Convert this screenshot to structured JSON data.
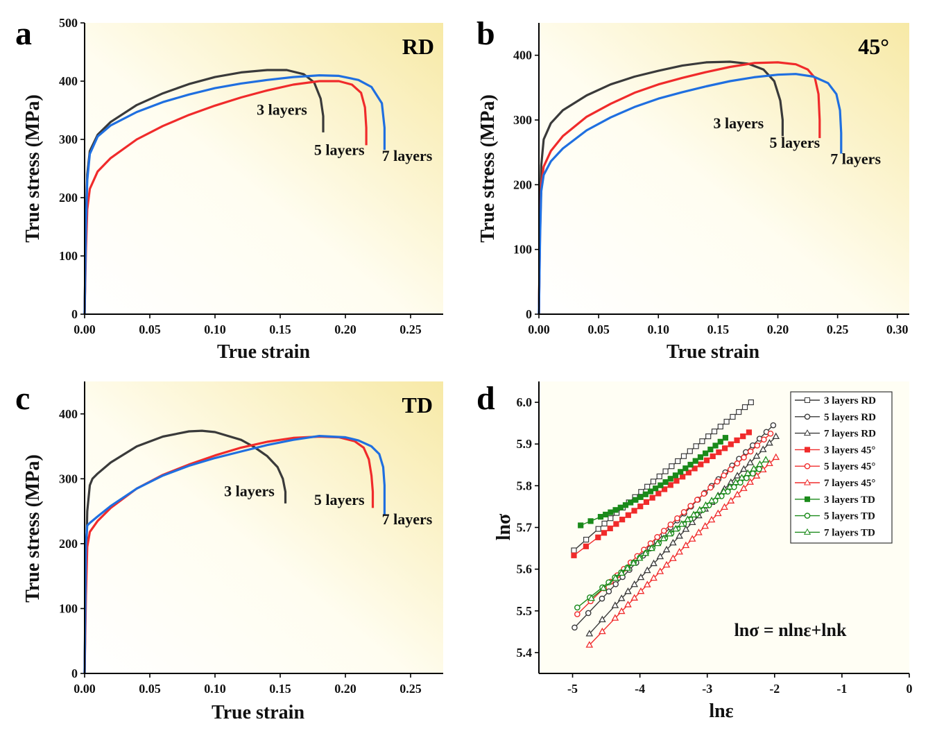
{
  "colors": {
    "black": "#3a3a3a",
    "red": "#f02b2b",
    "blue": "#1f6fe0",
    "green": "#1a8a1a",
    "bg_light": "#fffef6",
    "bg_dark": "#f8ebaa"
  },
  "chart_data": [
    {
      "id": "a",
      "type": "line",
      "panel_label": "a",
      "corner_label": "RD",
      "xlabel": "True strain",
      "ylabel": "True stress (MPa)",
      "xlim": [
        0,
        0.275
      ],
      "ylim": [
        0,
        500
      ],
      "xticks": [
        0.0,
        0.05,
        0.1,
        0.15,
        0.2,
        0.25
      ],
      "xtick_labels": [
        "0.00",
        "0.05",
        "0.10",
        "0.15",
        "0.20",
        "0.25"
      ],
      "yticks": [
        0,
        100,
        200,
        300,
        400,
        500
      ],
      "ytick_labels": [
        "0",
        "100",
        "200",
        "300",
        "400",
        "500"
      ],
      "series": [
        {
          "name": "3 layers",
          "color": "black",
          "label_at": [
            0.132,
            342
          ],
          "x": [
            0,
            0.001,
            0.002,
            0.004,
            0.01,
            0.02,
            0.04,
            0.06,
            0.08,
            0.1,
            0.12,
            0.14,
            0.155,
            0.168,
            0.176,
            0.181,
            0.183,
            0.183
          ],
          "y": [
            0,
            160,
            240,
            280,
            308,
            330,
            359,
            379,
            395,
            407,
            415,
            419,
            419,
            412,
            398,
            370,
            340,
            312
          ]
        },
        {
          "name": "5 layers",
          "color": "red",
          "label_at": [
            0.176,
            273
          ],
          "x": [
            0,
            0.001,
            0.002,
            0.004,
            0.01,
            0.02,
            0.04,
            0.06,
            0.08,
            0.1,
            0.12,
            0.14,
            0.16,
            0.18,
            0.195,
            0.205,
            0.212,
            0.215,
            0.216,
            0.216
          ],
          "y": [
            0,
            110,
            180,
            215,
            245,
            268,
            300,
            323,
            342,
            358,
            372,
            384,
            394,
            400,
            400,
            394,
            380,
            355,
            320,
            290
          ]
        },
        {
          "name": "7 layers",
          "color": "blue",
          "label_at": [
            0.228,
            263
          ],
          "x": [
            0,
            0.001,
            0.002,
            0.004,
            0.01,
            0.02,
            0.04,
            0.06,
            0.08,
            0.1,
            0.12,
            0.14,
            0.16,
            0.18,
            0.195,
            0.21,
            0.22,
            0.228,
            0.23,
            0.23
          ],
          "y": [
            0,
            150,
            230,
            275,
            305,
            324,
            347,
            364,
            377,
            388,
            396,
            402,
            407,
            410,
            409,
            402,
            390,
            362,
            320,
            282
          ]
        }
      ]
    },
    {
      "id": "b",
      "type": "line",
      "panel_label": "b",
      "corner_label": "45°",
      "xlabel": "True strain",
      "ylabel": "True stress (MPa)",
      "xlim": [
        0,
        0.31
      ],
      "ylim": [
        0,
        450
      ],
      "xticks": [
        0.0,
        0.05,
        0.1,
        0.15,
        0.2,
        0.25,
        0.3
      ],
      "xtick_labels": [
        "0.00",
        "0.05",
        "0.10",
        "0.15",
        "0.20",
        "0.25",
        "0.30"
      ],
      "yticks": [
        0,
        100,
        200,
        300,
        400
      ],
      "ytick_labels": [
        "0",
        "100",
        "200",
        "300",
        "400"
      ],
      "series": [
        {
          "name": "3 layers",
          "color": "black",
          "label_at": [
            0.146,
            287
          ],
          "x": [
            0,
            0.001,
            0.002,
            0.004,
            0.01,
            0.02,
            0.04,
            0.06,
            0.08,
            0.1,
            0.12,
            0.14,
            0.16,
            0.175,
            0.188,
            0.197,
            0.202,
            0.204,
            0.204
          ],
          "y": [
            0,
            150,
            230,
            270,
            295,
            315,
            338,
            355,
            367,
            376,
            384,
            389,
            390,
            387,
            378,
            360,
            330,
            300,
            275
          ]
        },
        {
          "name": "5 layers",
          "color": "red",
          "label_at": [
            0.193,
            257
          ],
          "x": [
            0,
            0.001,
            0.002,
            0.004,
            0.01,
            0.02,
            0.04,
            0.06,
            0.08,
            0.1,
            0.12,
            0.14,
            0.16,
            0.18,
            0.2,
            0.215,
            0.225,
            0.231,
            0.234,
            0.235,
            0.235
          ],
          "y": [
            0,
            130,
            200,
            228,
            252,
            275,
            305,
            325,
            342,
            355,
            365,
            374,
            382,
            388,
            389,
            386,
            378,
            365,
            340,
            300,
            272
          ]
        },
        {
          "name": "7 layers",
          "color": "blue",
          "label_at": [
            0.244,
            232
          ],
          "x": [
            0,
            0.001,
            0.002,
            0.004,
            0.01,
            0.02,
            0.04,
            0.06,
            0.08,
            0.1,
            0.12,
            0.14,
            0.16,
            0.18,
            0.2,
            0.215,
            0.23,
            0.242,
            0.249,
            0.252,
            0.253,
            0.253
          ],
          "y": [
            0,
            120,
            190,
            215,
            236,
            256,
            284,
            304,
            320,
            333,
            343,
            352,
            360,
            366,
            370,
            371,
            367,
            357,
            340,
            315,
            280,
            248
          ]
        }
      ]
    },
    {
      "id": "c",
      "type": "line",
      "panel_label": "c",
      "corner_label": "TD",
      "xlabel": "True strain",
      "ylabel": "True stress (MPa)",
      "xlim": [
        0,
        0.275
      ],
      "ylim": [
        0,
        450
      ],
      "xticks": [
        0.0,
        0.05,
        0.1,
        0.15,
        0.2,
        0.25
      ],
      "xtick_labels": [
        "0.00",
        "0.05",
        "0.10",
        "0.15",
        "0.20",
        "0.25"
      ],
      "yticks": [
        0,
        100,
        200,
        300,
        400
      ],
      "ytick_labels": [
        "0",
        "100",
        "200",
        "300",
        "400"
      ],
      "series": [
        {
          "name": "3 layers",
          "color": "black",
          "label_at": [
            0.107,
            273
          ],
          "x": [
            0,
            0.001,
            0.002,
            0.004,
            0.006,
            0.01,
            0.02,
            0.04,
            0.06,
            0.08,
            0.09,
            0.1,
            0.12,
            0.13,
            0.14,
            0.148,
            0.152,
            0.154,
            0.154
          ],
          "y": [
            0,
            160,
            250,
            290,
            300,
            308,
            325,
            350,
            365,
            373,
            374,
            372,
            360,
            349,
            335,
            318,
            300,
            280,
            262
          ]
        },
        {
          "name": "5 layers",
          "color": "red",
          "label_at": [
            0.176,
            260
          ],
          "x": [
            0,
            0.001,
            0.002,
            0.004,
            0.01,
            0.02,
            0.04,
            0.06,
            0.08,
            0.1,
            0.12,
            0.14,
            0.16,
            0.18,
            0.195,
            0.207,
            0.214,
            0.218,
            0.22,
            0.221,
            0.221
          ],
          "y": [
            0,
            120,
            195,
            218,
            235,
            255,
            285,
            306,
            322,
            336,
            348,
            357,
            363,
            365,
            364,
            358,
            348,
            330,
            305,
            280,
            255
          ]
        },
        {
          "name": "7 layers",
          "color": "blue",
          "label_at": [
            0.228,
            230
          ],
          "x": [
            0,
            0.001,
            0.002,
            0.004,
            0.01,
            0.02,
            0.04,
            0.06,
            0.08,
            0.1,
            0.12,
            0.14,
            0.16,
            0.18,
            0.2,
            0.21,
            0.22,
            0.226,
            0.229,
            0.23,
            0.23
          ],
          "y": [
            0,
            200,
            228,
            232,
            242,
            258,
            285,
            305,
            320,
            332,
            342,
            352,
            360,
            366,
            364,
            359,
            350,
            338,
            318,
            290,
            245
          ]
        }
      ]
    },
    {
      "id": "d",
      "type": "line",
      "panel_label": "d",
      "xlabel": "lnε",
      "ylabel": "lnσ",
      "xlim": [
        -5.5,
        0
      ],
      "ylim": [
        5.35,
        6.05
      ],
      "xticks": [
        -5,
        -4,
        -3,
        -2,
        -1,
        0
      ],
      "xtick_labels": [
        "-5",
        "-4",
        "-3",
        "-2",
        "-1",
        "0"
      ],
      "yticks": [
        5.4,
        5.5,
        5.6,
        5.7,
        5.8,
        5.9,
        6.0
      ],
      "ytick_labels": [
        "5.4",
        "5.5",
        "5.6",
        "5.7",
        "5.8",
        "5.9",
        "6.0"
      ],
      "annotation": {
        "text": "lnσ = nlnε+lnk",
        "at": [
          -2.6,
          5.44
        ]
      },
      "legend": {
        "position": "top-right"
      },
      "series": [
        {
          "name": "3 layers RD",
          "color": "black",
          "marker": "square",
          "x_start": -4.98,
          "x_end": -2.35,
          "y_start": 5.645,
          "y_end": 6.0
        },
        {
          "name": "5 layers RD",
          "color": "black",
          "marker": "circle",
          "x_start": -4.97,
          "x_end": -2.02,
          "y_start": 5.46,
          "y_end": 5.945
        },
        {
          "name": "7 layers RD",
          "color": "black",
          "marker": "triangle",
          "x_start": -4.75,
          "x_end": -1.98,
          "y_start": 5.445,
          "y_end": 5.918
        },
        {
          "name": "3 layers 45°",
          "color": "red",
          "marker": "square",
          "x_start": -4.98,
          "x_end": -2.38,
          "y_start": 5.633,
          "y_end": 5.928
        },
        {
          "name": "5 layers 45°",
          "color": "red",
          "marker": "circle",
          "x_start": -4.93,
          "x_end": -2.06,
          "y_start": 5.492,
          "y_end": 5.925
        },
        {
          "name": "7 layers 45°",
          "color": "red",
          "marker": "triangle",
          "x_start": -4.75,
          "x_end": -1.98,
          "y_start": 5.418,
          "y_end": 5.868
        },
        {
          "name": "3 layers TD",
          "color": "green",
          "marker": "square",
          "x_start": -4.88,
          "x_end": -2.73,
          "y_start": 5.705,
          "y_end": 5.915
        },
        {
          "name": "5 layers TD",
          "color": "green",
          "marker": "circle",
          "x_start": -4.93,
          "x_end": -2.23,
          "y_start": 5.508,
          "y_end": 5.84
        },
        {
          "name": "7 layers TD",
          "color": "green",
          "marker": "triangle",
          "x_start": -4.72,
          "x_end": -2.13,
          "y_start": 5.53,
          "y_end": 5.862
        }
      ]
    }
  ]
}
